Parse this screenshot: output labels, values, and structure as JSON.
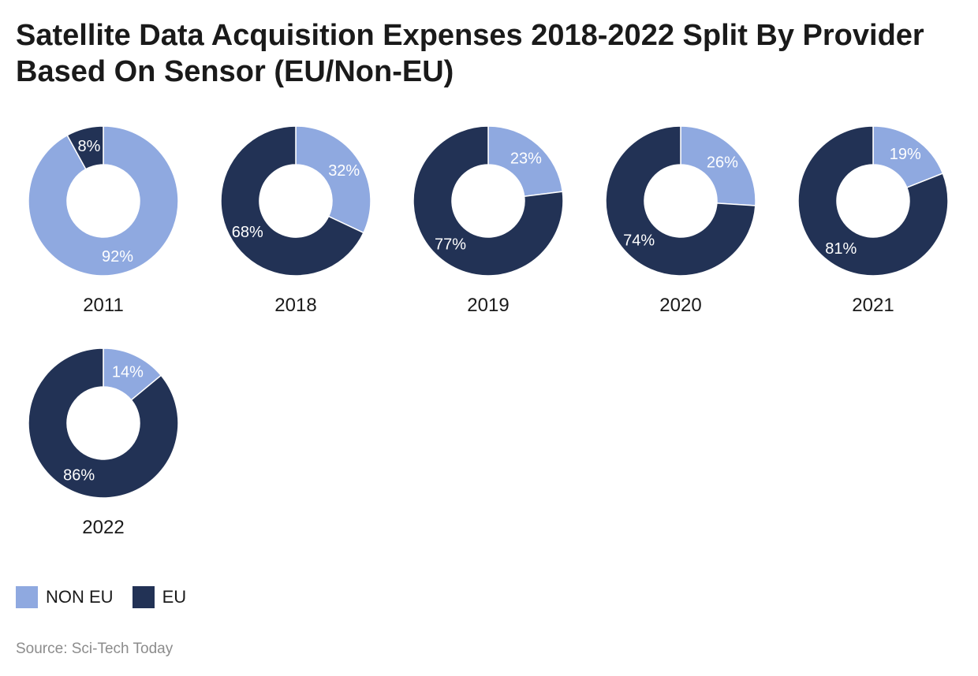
{
  "title": "Satellite Data Acquisition Expenses 2018-2022 Split By Provider Based On Sensor (EU/Non-EU)",
  "source": "Source: Sci-Tech Today",
  "colors": {
    "non_eu": "#8fa9e0",
    "eu": "#223255",
    "label_on_dark": "#ffffff",
    "label_on_light": "#ffffff"
  },
  "legend": [
    {
      "label": "NON EU",
      "color": "#8fa9e0"
    },
    {
      "label": "EU",
      "color": "#223255"
    }
  ],
  "chart_data": {
    "type": "pie",
    "variant": "donut",
    "series_names": [
      "NON EU",
      "EU"
    ],
    "legend_position": "bottom-left",
    "charts": [
      {
        "year": "2011",
        "non_eu": 92,
        "eu": 8,
        "labels": [
          "92%",
          "8%"
        ]
      },
      {
        "year": "2018",
        "non_eu": 32,
        "eu": 68,
        "labels": [
          "32%",
          "68%"
        ]
      },
      {
        "year": "2019",
        "non_eu": 23,
        "eu": 77,
        "labels": [
          "23%",
          "77%"
        ]
      },
      {
        "year": "2020",
        "non_eu": 26,
        "eu": 74,
        "labels": [
          "26%",
          "74%"
        ]
      },
      {
        "year": "2021",
        "non_eu": 19,
        "eu": 81,
        "labels": [
          "19%",
          "81%"
        ]
      },
      {
        "year": "2022",
        "non_eu": 14,
        "eu": 86,
        "labels": [
          "14%",
          "86%"
        ]
      }
    ]
  }
}
